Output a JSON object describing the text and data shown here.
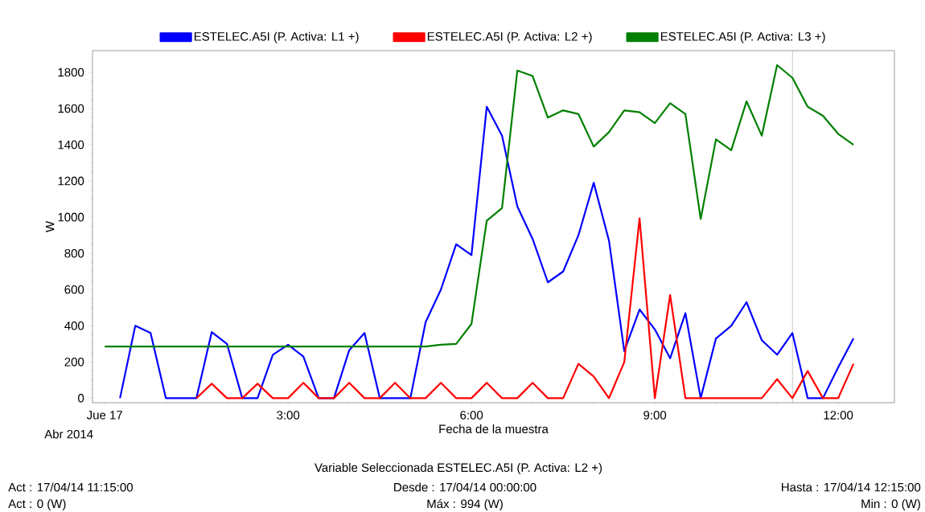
{
  "chart_data": {
    "type": "line",
    "xlabel": "Fecha de la muestra",
    "ylabel": "W",
    "x": [
      0,
      0.25,
      0.5,
      0.75,
      1,
      1.25,
      1.5,
      1.75,
      2,
      2.25,
      2.5,
      2.75,
      3,
      3.25,
      3.5,
      3.75,
      4,
      4.25,
      4.5,
      4.75,
      5,
      5.25,
      5.5,
      5.75,
      6,
      6.25,
      6.5,
      6.75,
      7,
      7.25,
      7.5,
      7.75,
      8,
      8.25,
      8.5,
      8.75,
      9,
      9.25,
      9.5,
      9.75,
      10,
      10.25,
      10.5,
      10.75,
      11,
      11.25,
      11.5,
      11.75,
      12,
      12.25
    ],
    "series": [
      {
        "name": "ESTELEC.A5I (P. Activa: L1 +)",
        "color": "#0000ff",
        "values": [
          null,
          0,
          400,
          360,
          0,
          0,
          0,
          365,
          300,
          0,
          0,
          240,
          295,
          230,
          0,
          0,
          265,
          360,
          0,
          0,
          0,
          420,
          600,
          850,
          790,
          1610,
          1450,
          1060,
          880,
          640,
          700,
          900,
          1190,
          870,
          260,
          490,
          380,
          220,
          470,
          0,
          330,
          400,
          530,
          320,
          240,
          360,
          0,
          0,
          170,
          330
        ]
      },
      {
        "name": "ESTELEC.A5I (P. Activa: L2 +)",
        "color": "#ff0000",
        "values": [
          null,
          null,
          null,
          null,
          null,
          null,
          0,
          80,
          0,
          0,
          80,
          0,
          0,
          85,
          0,
          0,
          85,
          0,
          0,
          85,
          0,
          0,
          85,
          0,
          0,
          85,
          0,
          0,
          85,
          0,
          0,
          190,
          120,
          0,
          200,
          994,
          0,
          570,
          0,
          0,
          0,
          0,
          0,
          0,
          105,
          0,
          150,
          0,
          0,
          190
        ]
      },
      {
        "name": "ESTELEC.A5I (P. Activa: L3 +)",
        "color": "#007f00",
        "values": [
          285,
          285,
          285,
          285,
          285,
          285,
          285,
          285,
          285,
          285,
          285,
          285,
          285,
          285,
          285,
          285,
          285,
          285,
          285,
          285,
          285,
          285,
          295,
          300,
          410,
          980,
          1050,
          1810,
          1780,
          1550,
          1590,
          1570,
          1390,
          1470,
          1590,
          1580,
          1520,
          1630,
          1570,
          990,
          1430,
          1370,
          1640,
          1450,
          1840,
          1770,
          1610,
          1560,
          1460,
          1400
        ]
      }
    ],
    "xlim": [
      -0.2,
      12.92
    ],
    "ylim": [
      -25,
      1920
    ],
    "xticks": [
      {
        "value": 0,
        "label": "Jue 17"
      },
      {
        "value": 3,
        "label": "3:00"
      },
      {
        "value": 6,
        "label": "6:00"
      },
      {
        "value": 9,
        "label": "9:00"
      },
      {
        "value": 12,
        "label": "12:00"
      }
    ],
    "yticks": [
      0,
      200,
      400,
      600,
      800,
      1000,
      1200,
      1400,
      1600,
      1800
    ],
    "ref_lines": [
      {
        "axis": "x",
        "value": 11.25,
        "color": "#808080"
      }
    ],
    "legend": "top",
    "grid": false,
    "marker": "none",
    "line_style": "solid",
    "annotations": [
      "Abr 2014",
      "Variable Seleccionada  ESTELEC.A5I (P. Activa: L2 +)",
      "Act : 17/04/14 11:15:00",
      "Desde : 17/04/14 00:00:00",
      "Hasta : 17/04/14 12:15:00",
      "Act : 0 (W)",
      "Máx : 994 (W)",
      "Min : 0 (W)"
    ]
  }
}
